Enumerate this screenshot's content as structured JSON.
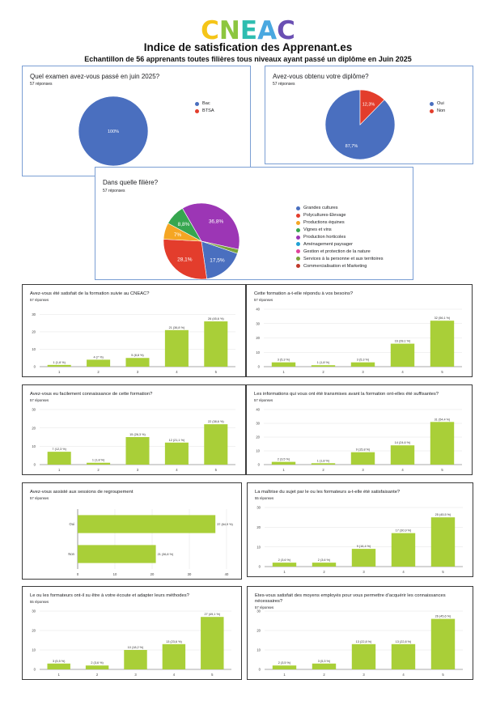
{
  "header": {
    "logo": [
      "C",
      "N",
      "E",
      "A",
      "C"
    ],
    "logo_colors": [
      "#f5c518",
      "#8cc63f",
      "#2ebdb0",
      "#4aa8e0",
      "#6a4fb3"
    ],
    "title": "Indice de satisfication des Apprenant.es",
    "subtitle": "Echantillon de 56 apprenants toutes filières tous niveaux ayant passé un diplôme en Juin 2025"
  },
  "colors": {
    "bar": "#a9cf38",
    "pie": [
      "#4a6fbf",
      "#e33d2c",
      "#f5a623",
      "#36a64f",
      "#9c36b5",
      "#1fa0d4",
      "#e0429a",
      "#7aa33a",
      "#c0392b"
    ]
  },
  "chart_data": [
    {
      "id": "exam",
      "type": "pie",
      "title": "Quel examen avez-vous passé en juin 2025?",
      "subtitle": "57 réponses",
      "labels": [
        "Bac",
        "BTSA"
      ],
      "values": [
        100,
        0
      ],
      "data_labels": [
        "100%",
        ""
      ],
      "colors": [
        "#4a6fbf",
        "#e33d2c"
      ],
      "legend": "right"
    },
    {
      "id": "diplome",
      "type": "pie",
      "title": "Avez-vous obtenu votre diplôme?",
      "subtitle": "57 réponses",
      "labels": [
        "Oui",
        "Non"
      ],
      "values": [
        87.7,
        12.3
      ],
      "data_labels": [
        "87,7%",
        "12,3%"
      ],
      "colors": [
        "#4a6fbf",
        "#e33d2c"
      ],
      "legend": "right"
    },
    {
      "id": "filiere",
      "type": "pie",
      "title": "Dans quelle filière?",
      "subtitle": "57 réponses",
      "labels": [
        "Grandes cultures",
        "Polycultures-Elevage",
        "Productions équines",
        "Vignes et vins",
        "Production horticoles",
        "Aménagement paysager",
        "Gestion et protection de la nature",
        "Services à la personne et aux territoires",
        "Commercialisation et Marketing"
      ],
      "values": [
        17.5,
        28.1,
        7,
        8.8,
        36.8,
        0,
        0,
        1.8,
        0
      ],
      "data_labels": [
        "17,5%",
        "28,1%",
        "7%",
        "8,8%",
        "36,8%",
        "",
        "",
        "",
        ""
      ],
      "colors": [
        "#4a6fbf",
        "#e33d2c",
        "#f5a623",
        "#36a64f",
        "#9c36b5",
        "#1fa0d4",
        "#e0429a",
        "#7aa33a",
        "#c0392b"
      ],
      "legend": "right"
    },
    {
      "id": "q1",
      "type": "bar",
      "title": "Avez-vous été satisfait de la formation suivie au CNEAC?",
      "subtitle": "57 réponses",
      "categories": [
        "1",
        "2",
        "3",
        "4",
        "5"
      ],
      "values": [
        1,
        4,
        5,
        21,
        26
      ],
      "data_labels": [
        "1 (1,8 %)",
        "4 (7 %)",
        "5 (8,8 %)",
        "21 (36,8 %)",
        "26 (45,6 %)"
      ],
      "yticks": [
        0,
        10,
        20,
        30
      ],
      "ylim": [
        0,
        33
      ]
    },
    {
      "id": "q2",
      "type": "bar",
      "title": "Cette formation a-t-elle répondu à vos besoins?",
      "subtitle": "57 réponses",
      "categories": [
        "1",
        "2",
        "3",
        "4",
        "5"
      ],
      "values": [
        3,
        1,
        3,
        16,
        32
      ],
      "data_labels": [
        "3 (5,3 %)",
        "1 (1,8 %)",
        "3 (5,3 %)",
        "16 (28,1 %)",
        "32 (56,1 %)"
      ],
      "yticks": [
        0,
        10,
        20,
        30,
        40
      ],
      "ylim": [
        0,
        40
      ]
    },
    {
      "id": "q3",
      "type": "bar",
      "title": "Avez-vous eu facilement connaissance de cette formation?",
      "subtitle": "57 réponses",
      "categories": [
        "1",
        "2",
        "3",
        "4",
        "5"
      ],
      "values": [
        7,
        1,
        15,
        12,
        22
      ],
      "data_labels": [
        "7 (12,3 %)",
        "1 (1,8 %)",
        "15 (26,3 %)",
        "12 (21,1 %)",
        "22 (38,6 %)"
      ],
      "yticks": [
        0,
        10,
        20,
        30
      ],
      "ylim": [
        0,
        30
      ]
    },
    {
      "id": "q4",
      "type": "bar",
      "title": "Les informations qui vous ont été transmises avant la formation ont-elles été suffisantes?",
      "subtitle": "57 réponses",
      "categories": [
        "1",
        "2",
        "3",
        "4",
        "5"
      ],
      "values": [
        2,
        1,
        9,
        14,
        31
      ],
      "data_labels": [
        "2 (3,5 %)",
        "1 (1,8 %)",
        "9 (15,8 %)",
        "14 (24,6 %)",
        "31 (54,4 %)"
      ],
      "yticks": [
        0,
        10,
        20,
        30,
        40
      ],
      "ylim": [
        0,
        40
      ]
    },
    {
      "id": "q5",
      "type": "hbar",
      "title": "Avez-vous assisté aux sessions de regroupement",
      "subtitle": "57 réponses",
      "categories": [
        "Oui",
        "Non"
      ],
      "values": [
        37,
        21
      ],
      "data_labels": [
        "37 (64,9 %)",
        "21 (36,8 %)"
      ],
      "xticks": [
        0,
        10,
        20,
        30,
        40
      ],
      "xlim": [
        0,
        40
      ]
    },
    {
      "id": "q6",
      "type": "bar",
      "title": "La maîtrise du sujet par le ou les formateurs a-t-elle été satisfaisante?",
      "subtitle": "55 réponses",
      "categories": [
        "1",
        "2",
        "3",
        "4",
        "5"
      ],
      "values": [
        2,
        2,
        9,
        17,
        25
      ],
      "data_labels": [
        "2 (3,6 %)",
        "2 (3,6 %)",
        "9 (16,4 %)",
        "17 (30,9 %)",
        "25 (45,5 %)"
      ],
      "yticks": [
        0,
        10,
        20,
        30
      ],
      "ylim": [
        0,
        30
      ]
    },
    {
      "id": "q7",
      "type": "bar",
      "title": "Le ou les formateurs ont-il su être à votre écoute et adapter leurs méthodes?",
      "subtitle": "55 réponses",
      "categories": [
        "1",
        "2",
        "3",
        "4",
        "5"
      ],
      "values": [
        3,
        2,
        10,
        13,
        27
      ],
      "data_labels": [
        "3 (5,5 %)",
        "2 (3,6 %)",
        "10 (18,2 %)",
        "13 (23,6 %)",
        "27 (49,1 %)"
      ],
      "yticks": [
        0,
        10,
        20,
        30
      ],
      "ylim": [
        0,
        30
      ]
    },
    {
      "id": "q8",
      "type": "bar",
      "title": "Etes-vous satisfait des moyens employés pour vous permettre d'acquérir les connaissances nécessaires?",
      "subtitle": "57 réponses",
      "categories": [
        "1",
        "2",
        "3",
        "4",
        "5"
      ],
      "values": [
        2,
        3,
        13,
        13,
        26
      ],
      "data_labels": [
        "2 (3,5 %)",
        "3 (5,3 %)",
        "13 (22,8 %)",
        "13 (22,8 %)",
        "26 (45,6 %)"
      ],
      "yticks": [
        0,
        10,
        20,
        30
      ],
      "ylim": [
        0,
        30
      ]
    }
  ]
}
